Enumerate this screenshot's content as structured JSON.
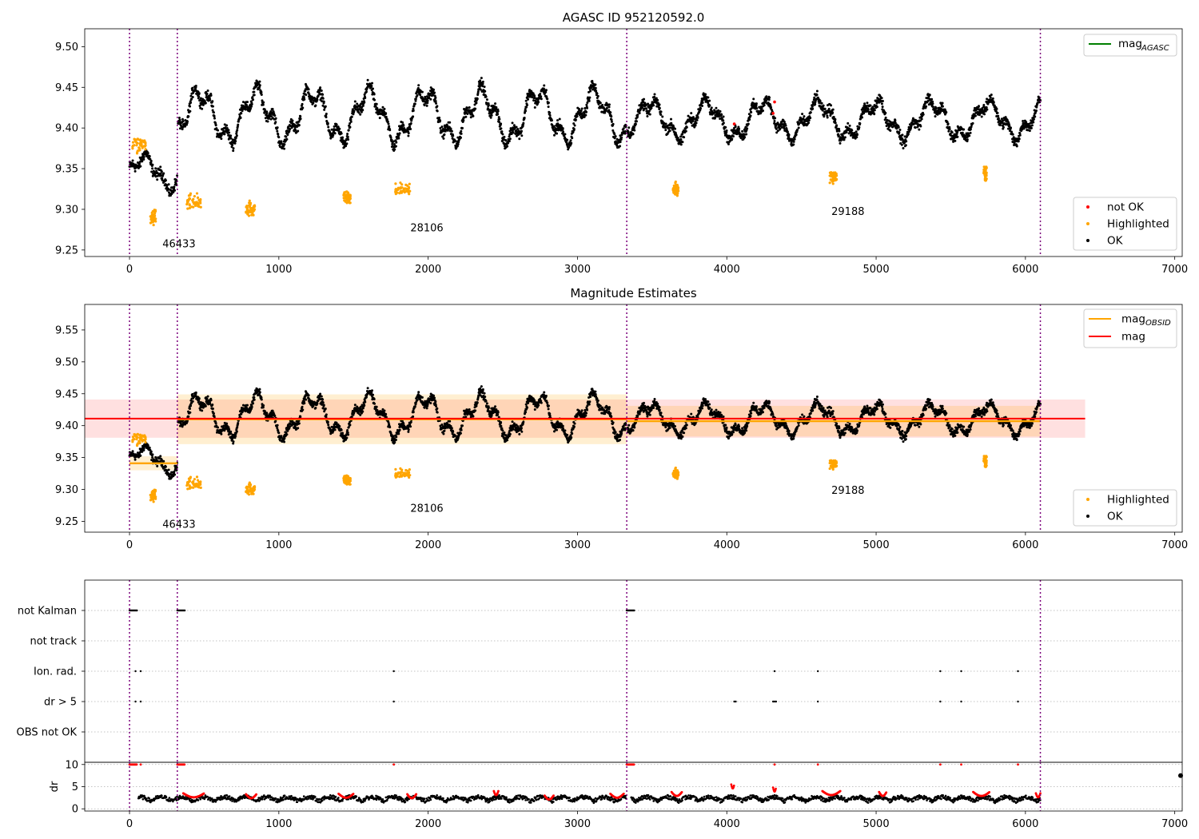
{
  "chart_data": [
    {
      "panel": "top",
      "type": "scatter",
      "title": "AGASC ID 952120592.0",
      "xlim": [
        -300,
        7050
      ],
      "ylim": [
        9.242,
        9.522
      ],
      "xticks": [
        0,
        1000,
        2000,
        3000,
        4000,
        5000,
        6000,
        7000
      ],
      "yticks": [
        9.25,
        9.3,
        9.35,
        9.4,
        9.45,
        9.5
      ],
      "obs_boundaries": [
        0,
        320,
        3330,
        6100
      ],
      "obs_labels": [
        {
          "text": "46433",
          "x": 160,
          "y": 9.257
        },
        {
          "text": "28106",
          "x": 1820,
          "y": 9.277
        },
        {
          "text": "29188",
          "x": 4640,
          "y": 9.297
        }
      ],
      "legend_lines": [
        {
          "label": "mag",
          "sub": "AGASC",
          "color": "#008000"
        }
      ],
      "legend_points": [
        {
          "label": "not OK",
          "color": "#ff0000"
        },
        {
          "label": "Highlighted",
          "color": "#ffa500"
        },
        {
          "label": "OK",
          "color": "#000000"
        }
      ],
      "segments": [
        {
          "x0": 0,
          "x1": 320,
          "base": 9.345,
          "amp": 0.018
        },
        {
          "x0": 325,
          "x1": 3325,
          "base": 9.415,
          "amp": 0.028
        },
        {
          "x0": 3335,
          "x1": 6100,
          "base": 9.41,
          "amp": 0.02
        }
      ],
      "highlighted_clusters": [
        {
          "x0": 20,
          "x1": 110,
          "y": 9.38
        },
        {
          "x0": 140,
          "x1": 175,
          "y": 9.29
        },
        {
          "x0": 380,
          "x1": 480,
          "y": 9.31
        },
        {
          "x0": 780,
          "x1": 840,
          "y": 9.3
        },
        {
          "x0": 1430,
          "x1": 1480,
          "y": 9.315
        },
        {
          "x0": 1780,
          "x1": 1880,
          "y": 9.325
        },
        {
          "x0": 3640,
          "x1": 3680,
          "y": 9.325
        },
        {
          "x0": 4690,
          "x1": 4740,
          "y": 9.34
        },
        {
          "x0": 5720,
          "x1": 5740,
          "y": 9.345
        }
      ],
      "not_ok_points": [
        {
          "x": 4050,
          "y": 9.405
        },
        {
          "x": 4320,
          "y": 9.432
        },
        {
          "x": 4310,
          "y": 9.418
        }
      ]
    },
    {
      "panel": "middle",
      "type": "scatter",
      "title": "Magnitude Estimates",
      "xlim": [
        -300,
        7050
      ],
      "ylim": [
        9.233,
        9.59
      ],
      "xticks": [
        0,
        1000,
        2000,
        3000,
        4000,
        5000,
        6000,
        7000
      ],
      "yticks": [
        9.25,
        9.3,
        9.35,
        9.4,
        9.45,
        9.5,
        9.55
      ],
      "obs_boundaries": [
        0,
        320,
        3330,
        6100
      ],
      "obs_labels": [
        {
          "text": "46433",
          "x": 160,
          "y": 9.245
        },
        {
          "text": "28106",
          "x": 1820,
          "y": 9.27
        },
        {
          "text": "29188",
          "x": 4640,
          "y": 9.298
        }
      ],
      "legend_lines": [
        {
          "label": "mag",
          "sub": "OBSID",
          "color": "#ffa500"
        },
        {
          "label": "mag",
          "sub": "",
          "color": "#ff0000"
        }
      ],
      "legend_points": [
        {
          "label": "Highlighted",
          "color": "#ffa500"
        },
        {
          "label": "OK",
          "color": "#000000"
        }
      ],
      "mag": {
        "value": 9.411,
        "band": [
          9.381,
          9.441
        ],
        "x0": -300,
        "x1": 6400
      },
      "mag_obsid": [
        {
          "x0": 0,
          "x1": 320,
          "value": 9.341,
          "band": [
            9.33,
            9.352
          ]
        },
        {
          "x0": 320,
          "x1": 3330,
          "value": 9.41,
          "band": [
            9.371,
            9.449
          ]
        },
        {
          "x0": 3330,
          "x1": 6100,
          "value": 9.407,
          "band": [
            9.383,
            9.431
          ]
        }
      ]
    },
    {
      "panel": "flags",
      "type": "scatter",
      "xlim": [
        -300,
        7050
      ],
      "categories": [
        "not Kalman",
        "not track",
        "Ion. rad.",
        "dr > 5",
        "OBS not OK"
      ],
      "flag_points": {
        "not Kalman": [
          [
            0,
            50
          ],
          [
            320,
            370
          ],
          [
            3330,
            3380
          ]
        ],
        "not track": [],
        "Ion. rad.": [
          [
            40
          ],
          [
            75
          ],
          [
            1770
          ],
          [
            4320
          ],
          [
            4610
          ],
          [
            5430
          ],
          [
            5570
          ],
          [
            5950
          ]
        ],
        "dr > 5": [
          [
            40
          ],
          [
            75
          ],
          [
            1770
          ],
          [
            4050
          ],
          [
            4060
          ],
          [
            4310
          ],
          [
            4320
          ],
          [
            4330
          ],
          [
            4610
          ],
          [
            5430
          ],
          [
            5570
          ],
          [
            5950
          ]
        ],
        "OBS not OK": []
      },
      "obs_boundaries": [
        0,
        320,
        3330,
        6100
      ]
    },
    {
      "panel": "dr",
      "type": "scatter",
      "ylabel": "dr",
      "xlim": [
        -300,
        7050
      ],
      "ylim": [
        -0.5,
        10.5
      ],
      "xticks": [
        0,
        1000,
        2000,
        3000,
        4000,
        5000,
        6000,
        7000
      ],
      "yticks": [
        0,
        5,
        10
      ],
      "obs_boundaries": [
        0,
        320,
        3330,
        6100
      ],
      "red_tens": [
        [
          0,
          50
        ],
        [
          75
        ],
        [
          320,
          370
        ],
        [
          1770
        ],
        [
          3330,
          3380
        ],
        [
          4320
        ],
        [
          4610
        ],
        [
          5430
        ],
        [
          5570
        ],
        [
          5950
        ]
      ],
      "red_arcs": [
        {
          "x0": 360,
          "x1": 500,
          "y": 3.5
        },
        {
          "x0": 780,
          "x1": 850,
          "y": 3.3
        },
        {
          "x0": 1400,
          "x1": 1500,
          "y": 3.4
        },
        {
          "x0": 1860,
          "x1": 1920,
          "y": 3.3
        },
        {
          "x0": 2440,
          "x1": 2470,
          "y": 4.0
        },
        {
          "x0": 2780,
          "x1": 2840,
          "y": 3.0
        },
        {
          "x0": 3220,
          "x1": 3310,
          "y": 3.4
        },
        {
          "x0": 3630,
          "x1": 3700,
          "y": 3.8
        },
        {
          "x0": 4030,
          "x1": 4050,
          "y": 5.5
        },
        {
          "x0": 4310,
          "x1": 4330,
          "y": 4.8
        },
        {
          "x0": 4640,
          "x1": 4760,
          "y": 4.0
        },
        {
          "x0": 5020,
          "x1": 5070,
          "y": 3.8
        },
        {
          "x0": 5650,
          "x1": 5760,
          "y": 3.8
        },
        {
          "x0": 6070,
          "x1": 6100,
          "y": 3.5
        }
      ]
    }
  ]
}
